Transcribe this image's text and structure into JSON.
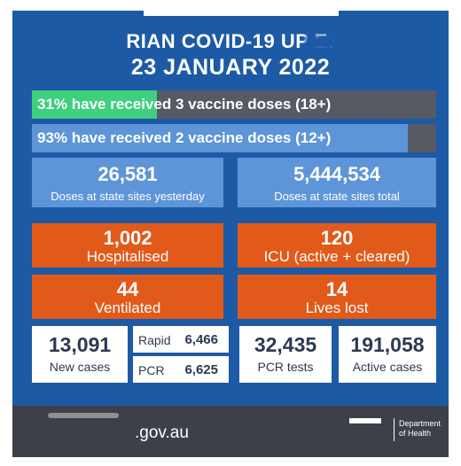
{
  "header": {
    "title_line1": "RIAN COVID-19 UP E:",
    "title_line2": "23 JANUARY 2022"
  },
  "vaccine_bars": [
    {
      "label": "31% have received 3 vaccine doses (18+)",
      "percent": 31,
      "fill_color": "#3fcf7f"
    },
    {
      "label": "93% have received 2 vaccine doses (12+)",
      "percent": 93,
      "fill_color": "#5d95d8"
    }
  ],
  "doses": {
    "yesterday_value": "26,581",
    "yesterday_label": "Doses at state sites yesterday",
    "total_value": "5,444,534",
    "total_label": "Doses at state sites total"
  },
  "hospital": {
    "hospitalised_value": "1,002",
    "hospitalised_label": "Hospitalised",
    "icu_value": "120",
    "icu_label": "ICU (active + cleared)",
    "ventilated_value": "44",
    "ventilated_label": "Ventilated",
    "lives_lost_value": "14",
    "lives_lost_label": "Lives lost"
  },
  "cases": {
    "new_value": "13,091",
    "new_label": "New cases",
    "rapid_label": "Rapid",
    "rapid_value": "6,466",
    "pcr_label": "PCR",
    "pcr_value": "6,625",
    "pcr_tests_value": "32,435",
    "pcr_tests_label": "PCR tests",
    "active_value": "191,058",
    "active_label": "Active cases"
  },
  "footer": {
    "website": ".gov.au",
    "dept_line1": "Department",
    "dept_line2": "of Health"
  },
  "colors": {
    "background": "#1d5aa6",
    "accent_orange": "#e15a1a",
    "accent_green": "#3fcf7f"
  }
}
